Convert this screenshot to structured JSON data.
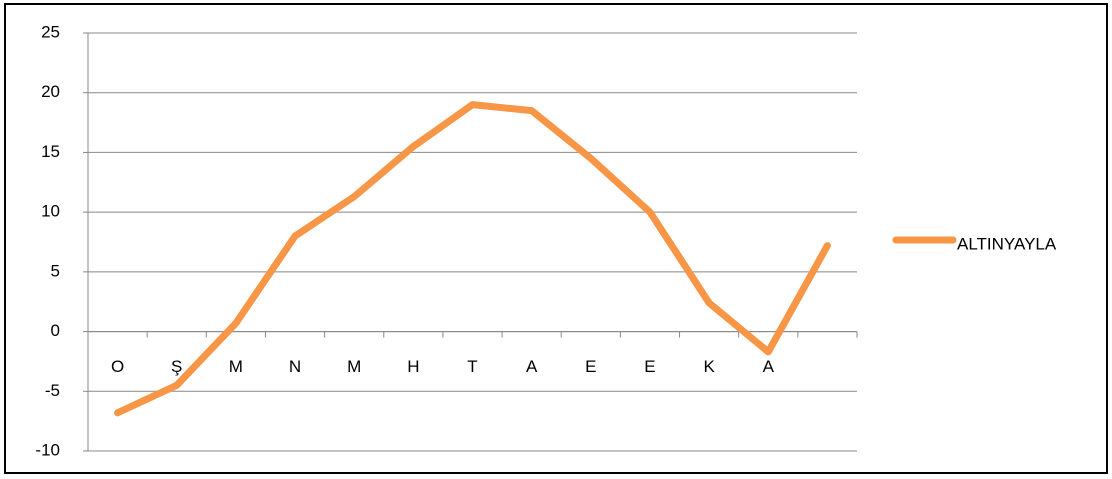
{
  "chart_data": {
    "type": "line",
    "categories": [
      "O",
      "Ş",
      "M",
      "N",
      "M",
      "H",
      "T",
      "A",
      "E",
      "E",
      "K",
      "A",
      null
    ],
    "series": [
      {
        "name": "ALTINYAYLA",
        "color": "#f79646",
        "values": [
          -6.8,
          -4.5,
          0.7,
          8,
          11.3,
          15.5,
          19,
          18.5,
          14.5,
          10,
          2.4,
          -1.7,
          7.2
        ]
      }
    ],
    "ylim": [
      -10,
      25
    ],
    "yticks": [
      -10,
      -5,
      0,
      5,
      10,
      15,
      20,
      25
    ],
    "grid": true,
    "legend": "right"
  }
}
